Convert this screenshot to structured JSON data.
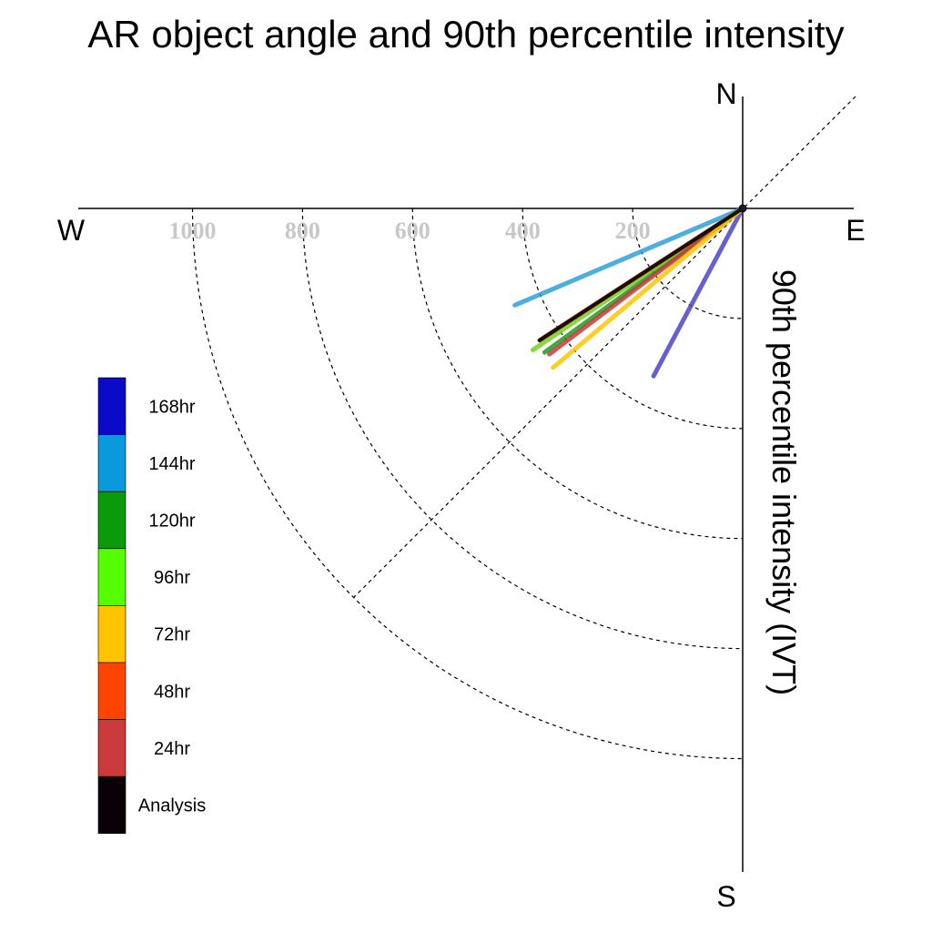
{
  "title": "AR object angle and 90th percentile intensity",
  "compass": {
    "north": "N",
    "south": "S",
    "east": "E",
    "west": "W"
  },
  "colors": {
    "axis": "#000000",
    "grid": "#000000",
    "tick_label": "#c8c8c8"
  },
  "chart_data": {
    "type": "polar-vector",
    "title": "AR object angle and 90th percentile intensity",
    "radial_label": "90th percentile intensity (IVT)",
    "radial_ticks": [
      200,
      400,
      600,
      800,
      1000
    ],
    "radial_range": [
      0,
      1200
    ],
    "grid": true,
    "diagonal_reference_angles_deg": [
      45,
      225
    ],
    "legend": {
      "placement": "left",
      "entries": [
        {
          "label": "168hr",
          "color": "#0a0ac8"
        },
        {
          "label": "144hr",
          "color": "#0a99dd"
        },
        {
          "label": "120hr",
          "color": "#0a9a0a"
        },
        {
          "label": "96hr",
          "color": "#55ff00"
        },
        {
          "label": "72hr",
          "color": "#ffc400"
        },
        {
          "label": "48hr",
          "color": "#ff4400"
        },
        {
          "label": "24hr",
          "color": "#cc3b3b"
        },
        {
          "label": "Analysis",
          "color": "#0a0008"
        }
      ]
    },
    "series": [
      {
        "name": "144hr",
        "color": "#2aa0d8",
        "angle_deg": 203,
        "intensity": 450
      },
      {
        "name": "168hr",
        "color": "#4b45c8",
        "angle_deg": 242,
        "intensity": 345
      },
      {
        "name": "120hr",
        "color": "#1f9a1f",
        "angle_deg": 216,
        "intensity": 445
      },
      {
        "name": "96hr",
        "color": "#6fd21a",
        "angle_deg": 214,
        "intensity": 460
      },
      {
        "name": "48hr",
        "color": "#ff4400",
        "angle_deg": 213,
        "intensity": 440
      },
      {
        "name": "24hr",
        "color": "#c43a3a",
        "angle_deg": 217,
        "intensity": 440
      },
      {
        "name": "72hr",
        "color": "#ffc400",
        "angle_deg": 220,
        "intensity": 450
      },
      {
        "name": "Analysis",
        "color": "#111111",
        "angle_deg": 213,
        "intensity": 440
      }
    ]
  }
}
